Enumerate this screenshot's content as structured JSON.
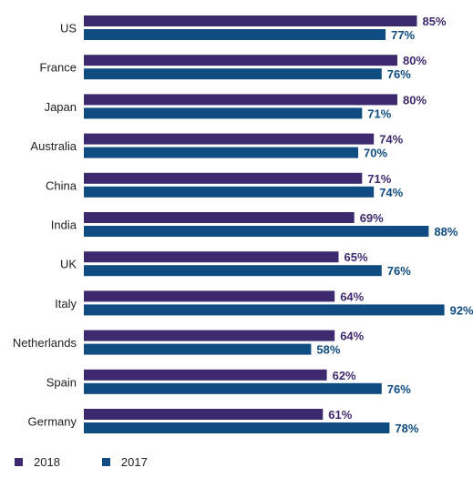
{
  "chart_data": {
    "type": "bar",
    "orientation": "horizontal",
    "categories": [
      "US",
      "France",
      "Japan",
      "Australia",
      "China",
      "India",
      "UK",
      "Italy",
      "Netherlands",
      "Spain",
      "Germany"
    ],
    "series": [
      {
        "name": "2018",
        "color": "#3d2a6e",
        "values": [
          85,
          80,
          80,
          74,
          71,
          69,
          65,
          64,
          64,
          62,
          61
        ],
        "labels": [
          "85%",
          "80%",
          "80%",
          "74%",
          "71%",
          "69%",
          "65%",
          "64%",
          "64%",
          "62%",
          "61%"
        ]
      },
      {
        "name": "2017",
        "color": "#0f4c81",
        "values": [
          77,
          76,
          71,
          70,
          74,
          88,
          76,
          92,
          58,
          76,
          78
        ],
        "labels": [
          "77%",
          "76%",
          "71%",
          "70%",
          "74%",
          "88%",
          "76%",
          "92%",
          "58%",
          "76%",
          "78%"
        ]
      }
    ],
    "xlim": [
      0,
      100
    ],
    "grid": false,
    "legend_position": "bottom-left"
  }
}
